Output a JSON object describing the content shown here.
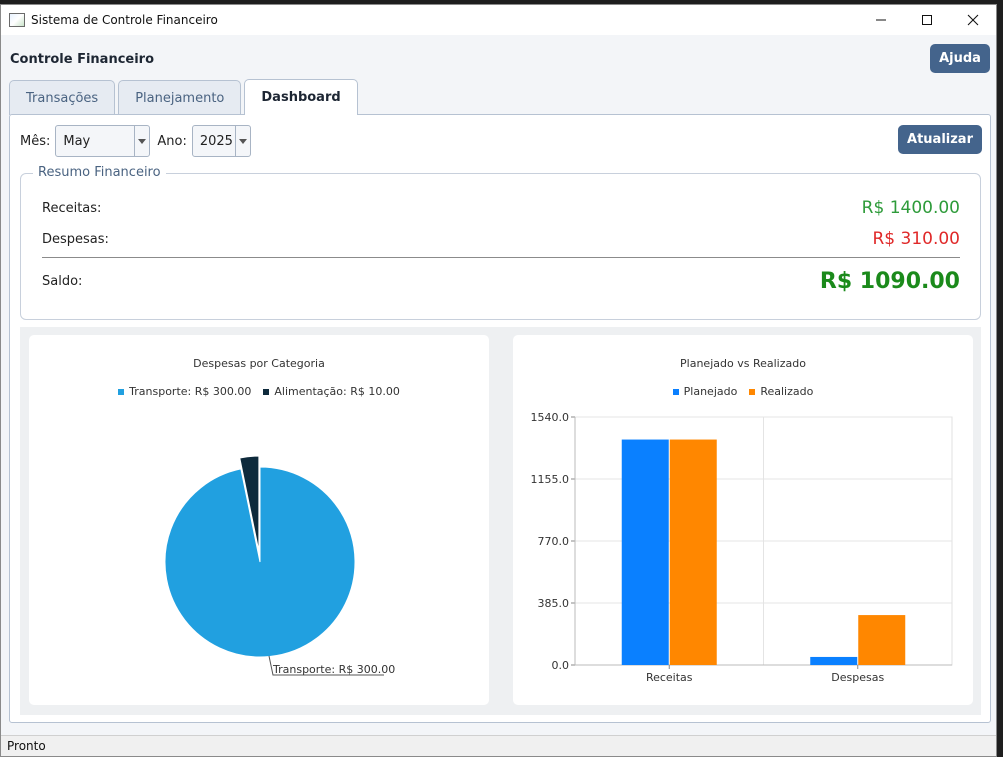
{
  "window": {
    "title": "Sistema de Controle Financeiro"
  },
  "header": {
    "title": "Controle Financeiro",
    "help_label": "Ajuda"
  },
  "tabs": [
    {
      "label": "Transações",
      "active": false
    },
    {
      "label": "Planejamento",
      "active": false
    },
    {
      "label": "Dashboard",
      "active": true
    }
  ],
  "filters": {
    "month_label": "Mês:",
    "month_value": "May",
    "year_label": "Ano:",
    "year_value": "2025",
    "update_label": "Atualizar"
  },
  "summary": {
    "title": "Resumo Financeiro",
    "income_label": "Receitas:",
    "income_value": "R$ 1400.00",
    "expenses_label": "Despesas:",
    "expenses_value": "R$ 310.00",
    "balance_label": "Saldo:",
    "balance_value": "R$ 1090.00"
  },
  "status": "Pronto",
  "colors": {
    "accent": "#44648c",
    "income": "#2e9b3a",
    "expense": "#e02929",
    "balance": "#1b8a1b"
  },
  "chart_data": [
    {
      "type": "pie",
      "title": "Despesas por Categoria",
      "slices": [
        {
          "label": "Transporte: R$ 300.00",
          "value": 300,
          "color": "#21a0e0"
        },
        {
          "label": "Alimentação: R$ 10.00",
          "value": 10,
          "color": "#0e2a3c"
        }
      ],
      "annotation": "Transporte: R$ 300.00",
      "legend": "top"
    },
    {
      "type": "bar",
      "title": "Planejado vs Realizado",
      "categories": [
        "Receitas",
        "Despesas"
      ],
      "series": [
        {
          "name": "Planejado",
          "values": [
            1400,
            50
          ],
          "color": "#0a80ff"
        },
        {
          "name": "Realizado",
          "values": [
            1400,
            310
          ],
          "color": "#ff8700"
        }
      ],
      "ylim": [
        0,
        1540
      ],
      "yticks": [
        "0.0",
        "385.0",
        "770.0",
        "1155.0",
        "1540.0"
      ],
      "grid": true,
      "legend": "top"
    }
  ]
}
